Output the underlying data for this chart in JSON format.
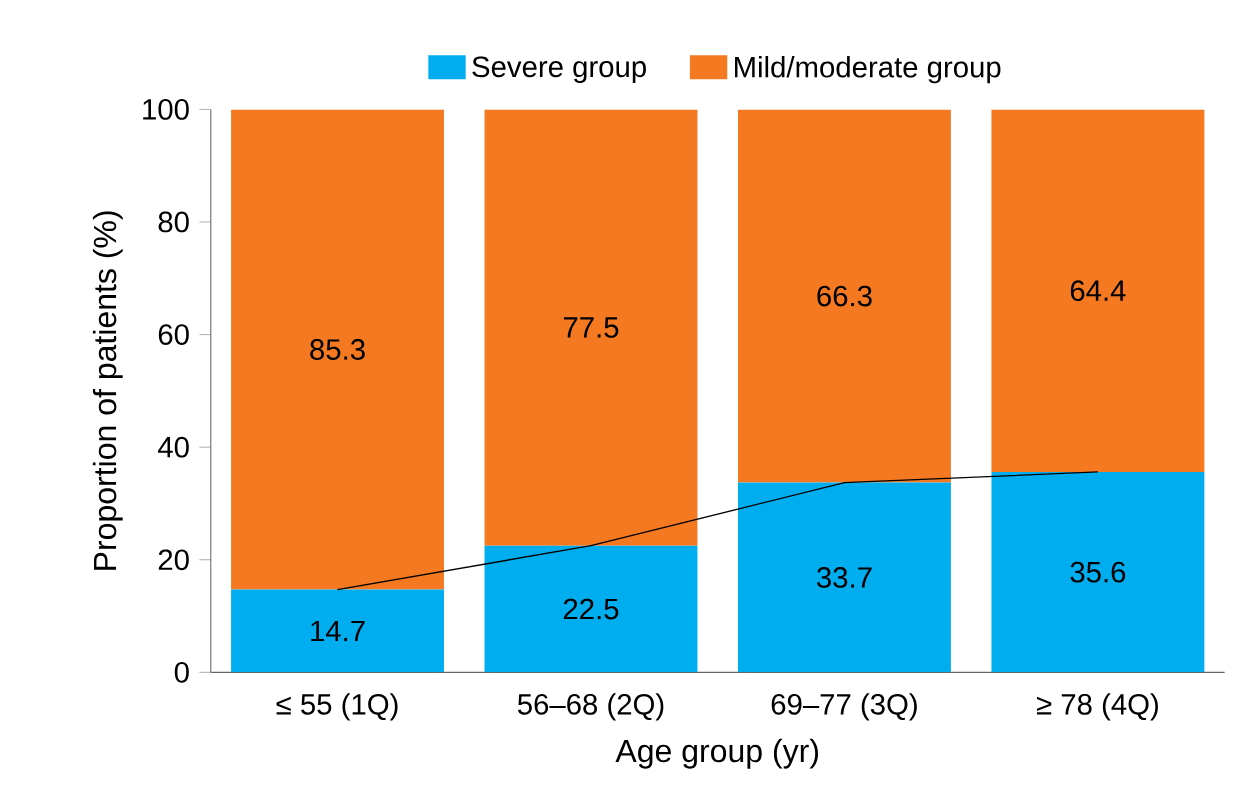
{
  "chart_data": {
    "type": "bar",
    "stacked": true,
    "xlabel": "Age group (yr)",
    "ylabel": "Proportion of patients (%)",
    "categories": [
      "≤ 55 (1Q)",
      "56–68 (2Q)",
      "69–77 (3Q)",
      "≥ 78 (4Q)"
    ],
    "series": [
      {
        "name": "Severe group",
        "color": "#00aeef",
        "values": [
          14.7,
          22.5,
          33.7,
          35.6
        ],
        "value_labels": [
          "14.7",
          "22.5",
          "33.7",
          "35.6"
        ]
      },
      {
        "name": "Mild/moderate group",
        "color": "#f47920",
        "values": [
          85.3,
          77.5,
          66.3,
          64.4
        ],
        "value_labels": [
          "85.3",
          "77.5",
          "66.3",
          "64.4"
        ]
      },
      {
        "type": "line",
        "color": "#000000",
        "values": [
          14.7,
          22.5,
          33.7,
          35.6
        ]
      }
    ],
    "ylim": [
      0,
      100
    ],
    "yticks": [
      0,
      20,
      40,
      60,
      80,
      100
    ],
    "legend": "top",
    "grid": false
  }
}
